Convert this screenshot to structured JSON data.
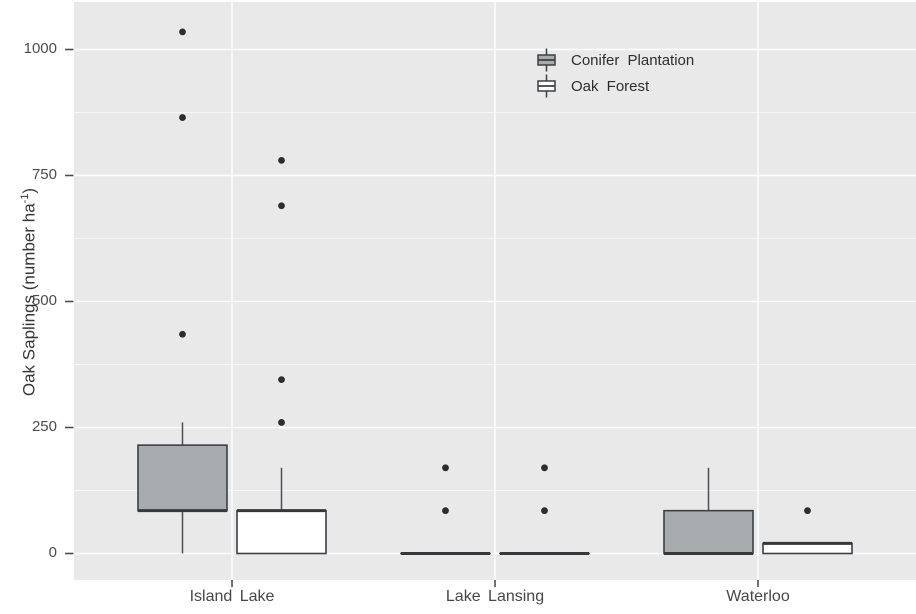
{
  "colors": {
    "panel_bg": "#e9e9ea",
    "grid_major": "#ffffff",
    "grid_minor": "rgba(255,255,255,0.6)",
    "box_border": "#3b4045",
    "whisker": "#4a4f53",
    "median": "#35393d",
    "dot": "#2d2d2d",
    "axis_text": "#4d4d4d",
    "conifer_fill": "#a7abae",
    "oak_fill": "#ffffff"
  },
  "chart_data": {
    "type": "boxplot",
    "title": "",
    "xlabel": "",
    "ylabel": "Oak Saplings (number ha⁻¹)",
    "ylabel_parts": {
      "pre": "Oak Saplings (number ha",
      "sup": "-1",
      "post": ")"
    },
    "categories": [
      "Island Lake",
      "Lake Lansing",
      "Waterloo"
    ],
    "y_ticks": [
      0,
      250,
      500,
      750,
      1000
    ],
    "ylim": [
      -50,
      1090
    ],
    "grid": true,
    "legend_position": "inside-top-center",
    "groups": [
      {
        "name": "Conifer Plantation",
        "fill": "#a7abae",
        "boxes": [
          {
            "category": "Island Lake",
            "whisker_low": 0,
            "q1": 85,
            "median": 85,
            "q3": 215,
            "whisker_high": 260,
            "outliers": [
              435,
              865,
              1035
            ]
          },
          {
            "category": "Lake Lansing",
            "whisker_low": 0,
            "q1": 0,
            "median": 0,
            "q3": 0,
            "whisker_high": 0,
            "outliers": [
              85,
              170
            ]
          },
          {
            "category": "Waterloo",
            "whisker_low": 0,
            "q1": 0,
            "median": 0,
            "q3": 85,
            "whisker_high": 170,
            "outliers": []
          }
        ]
      },
      {
        "name": "Oak Forest",
        "fill": "#ffffff",
        "boxes": [
          {
            "category": "Island Lake",
            "whisker_low": 0,
            "q1": 0,
            "median": 85,
            "q3": 85,
            "whisker_high": 170,
            "outliers": [
              260,
              345,
              690,
              780
            ]
          },
          {
            "category": "Lake Lansing",
            "whisker_low": 0,
            "q1": 0,
            "median": 0,
            "q3": 0,
            "whisker_high": 0,
            "outliers": [
              85,
              170
            ]
          },
          {
            "category": "Waterloo",
            "whisker_low": 0,
            "q1": 0,
            "median": 20,
            "q3": 20,
            "whisker_high": 20,
            "outliers": [
              85
            ]
          }
        ]
      }
    ]
  }
}
